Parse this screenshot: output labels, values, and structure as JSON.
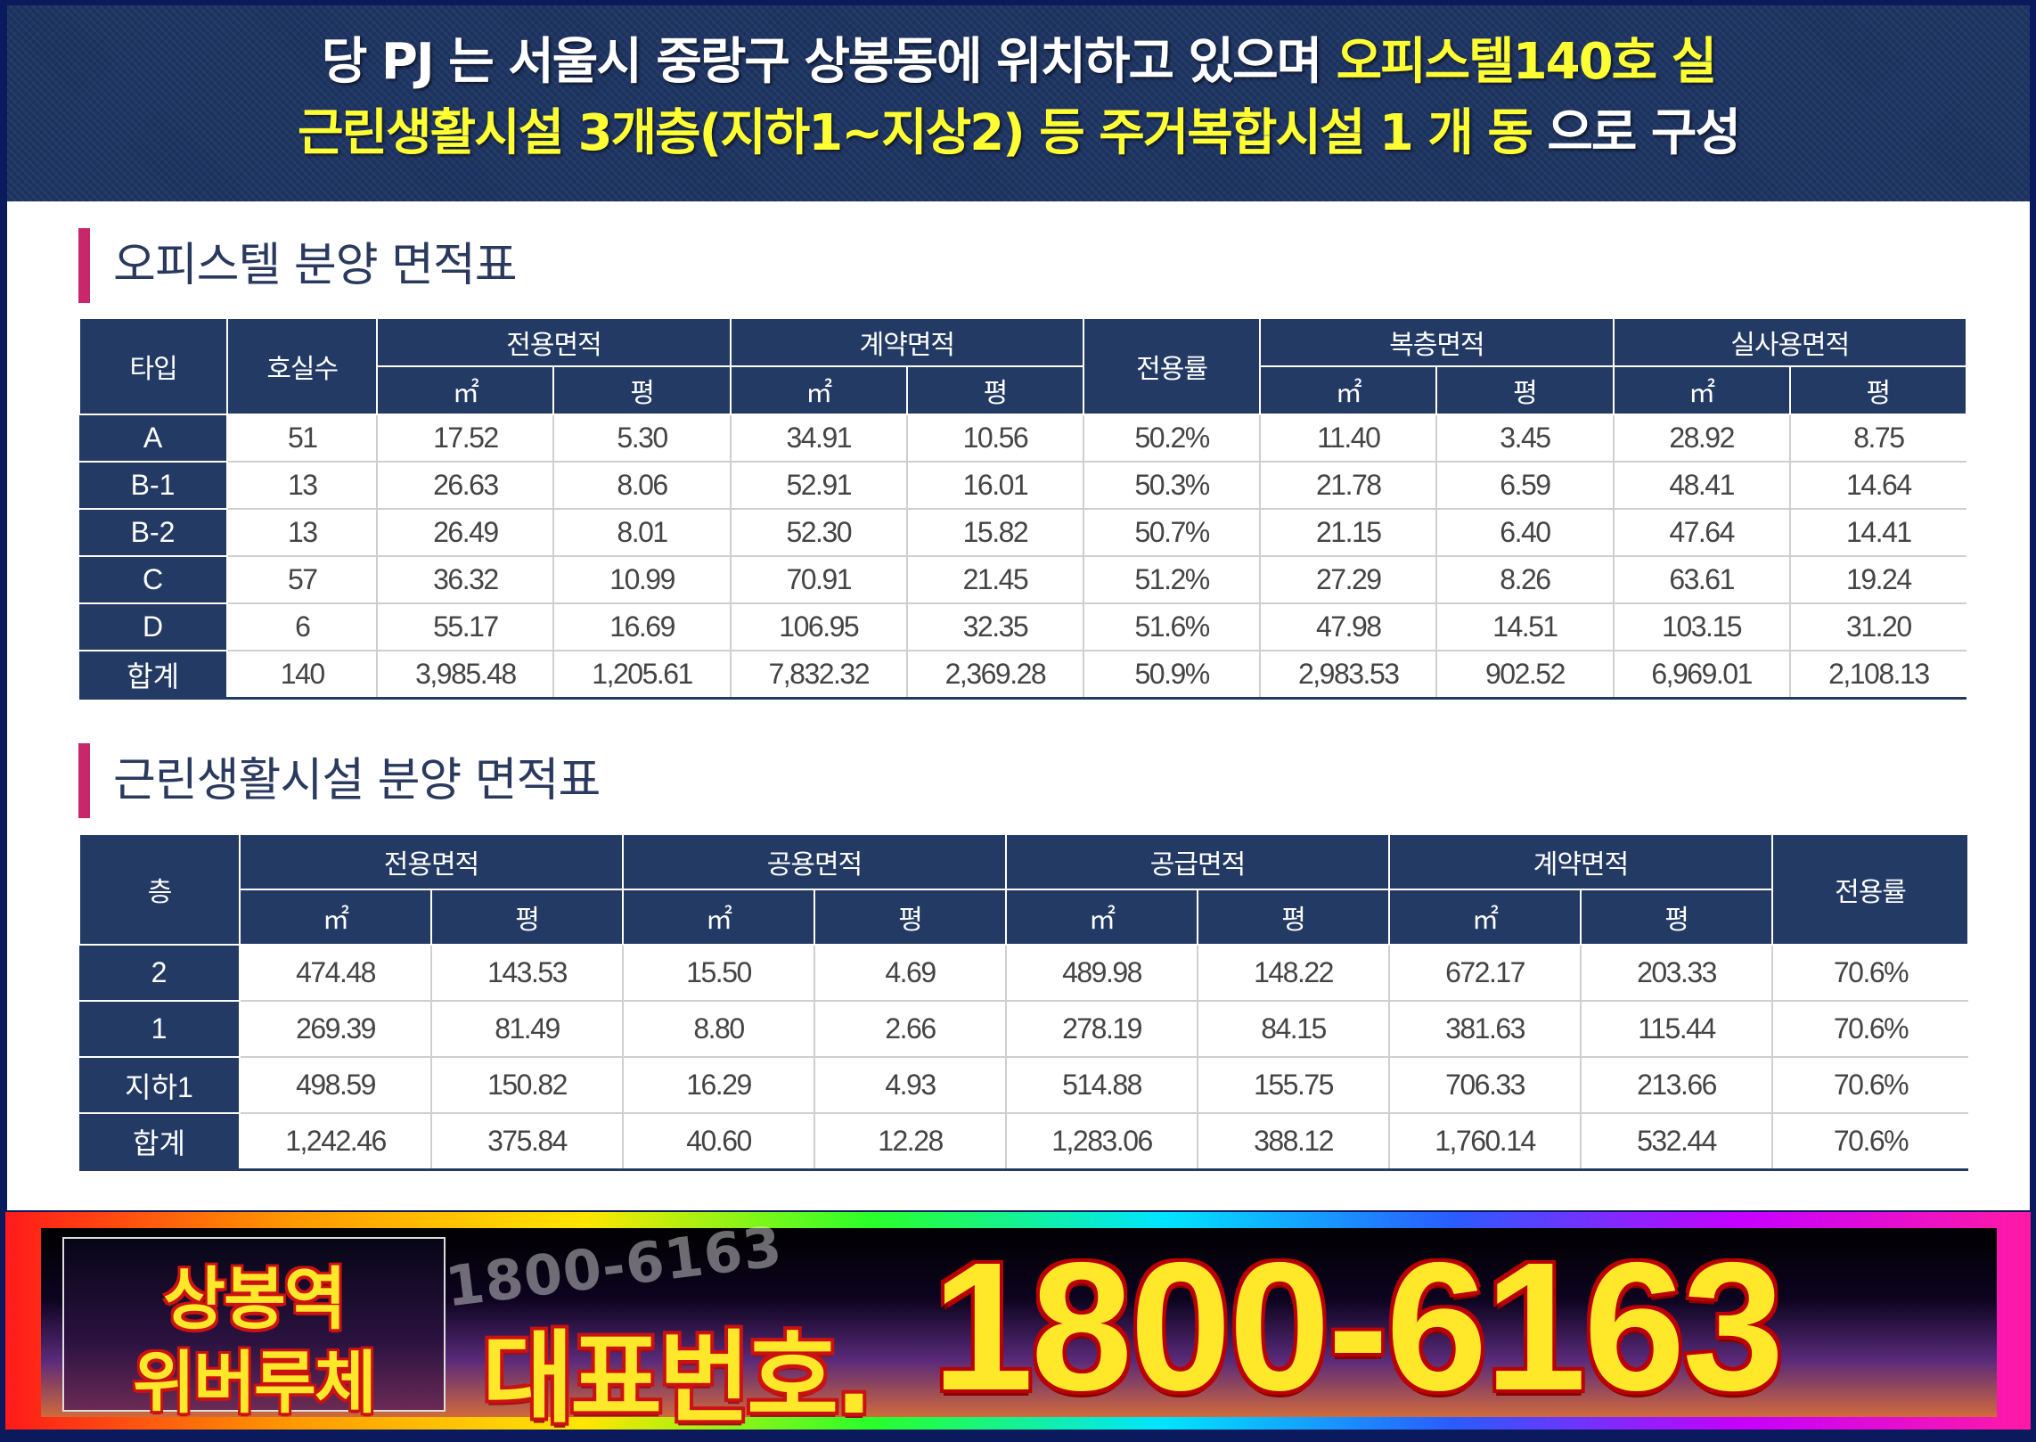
{
  "banner": {
    "line1_white": "당 PJ 는 서울시 중랑구 상봉동에 위치하고 있으며 ",
    "line1_yellow": "오피스텔140호 실",
    "line2_yellow": "근린생활시설 3개층(지하1~지상2) 등 주거복합시설 1 개 동",
    "line2_white": " 으로 구성"
  },
  "officetel": {
    "title": "오피스텔 분양 면적표",
    "headers": {
      "type": "타입",
      "units": "호실수",
      "exclusive": "전용면적",
      "contract": "계약면적",
      "ratio": "전용률",
      "duplex": "복층면적",
      "actual": "실사용면적",
      "sqm": "㎡",
      "pyeong": "평"
    },
    "rows": [
      [
        "A",
        "51",
        "17.52",
        "5.30",
        "34.91",
        "10.56",
        "50.2%",
        "11.40",
        "3.45",
        "28.92",
        "8.75"
      ],
      [
        "B-1",
        "13",
        "26.63",
        "8.06",
        "52.91",
        "16.01",
        "50.3%",
        "21.78",
        "6.59",
        "48.41",
        "14.64"
      ],
      [
        "B-2",
        "13",
        "26.49",
        "8.01",
        "52.30",
        "15.82",
        "50.7%",
        "21.15",
        "6.40",
        "47.64",
        "14.41"
      ],
      [
        "C",
        "57",
        "36.32",
        "10.99",
        "70.91",
        "21.45",
        "51.2%",
        "27.29",
        "8.26",
        "63.61",
        "19.24"
      ],
      [
        "D",
        "6",
        "55.17",
        "16.69",
        "106.95",
        "32.35",
        "51.6%",
        "47.98",
        "14.51",
        "103.15",
        "31.20"
      ],
      [
        "합계",
        "140",
        "3,985.48",
        "1,205.61",
        "7,832.32",
        "2,369.28",
        "50.9%",
        "2,983.53",
        "902.52",
        "6,969.01",
        "2,108.13"
      ]
    ]
  },
  "retail": {
    "title": "근린생활시설 분양 면적표",
    "headers": {
      "floor": "층",
      "exclusive": "전용면적",
      "common": "공용면적",
      "supply": "공급면적",
      "contract": "계약면적",
      "ratio": "전용률",
      "sqm": "㎡",
      "pyeong": "평"
    },
    "rows": [
      [
        "2",
        "474.48",
        "143.53",
        "15.50",
        "4.69",
        "489.98",
        "148.22",
        "672.17",
        "203.33",
        "70.6%"
      ],
      [
        "1",
        "269.39",
        "81.49",
        "8.80",
        "2.66",
        "278.19",
        "84.15",
        "381.63",
        "115.44",
        "70.6%"
      ],
      [
        "지하1",
        "498.59",
        "150.82",
        "16.29",
        "4.93",
        "514.88",
        "155.75",
        "706.33",
        "213.66",
        "70.6%"
      ],
      [
        "합계",
        "1,242.46",
        "375.84",
        "40.60",
        "12.28",
        "1,283.06",
        "388.12",
        "1,760.14",
        "532.44",
        "70.6%"
      ]
    ]
  },
  "footer": {
    "brand_line1": "상봉역",
    "brand_line2": "위버루체",
    "watermark": "1800-6163",
    "phone_label": "대표번호.",
    "phone_number": "1800-6163"
  }
}
